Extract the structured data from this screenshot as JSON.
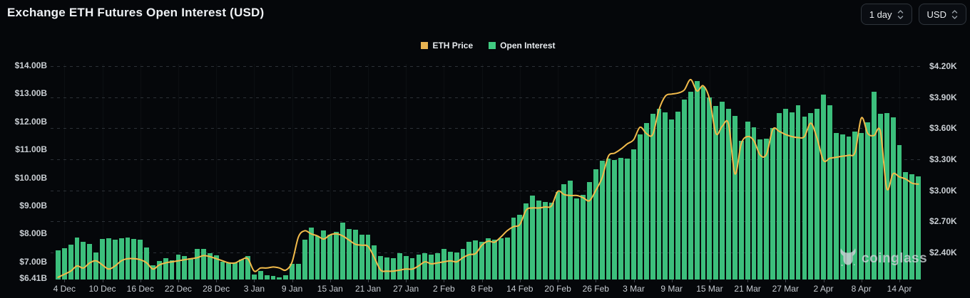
{
  "header": {
    "title": "Exchange ETH Futures Open Interest (USD)"
  },
  "controls": {
    "interval_select": {
      "value": "1 day"
    },
    "currency_select": {
      "value": "USD"
    }
  },
  "icons": {
    "select_chevron": "up-down-chevrons",
    "watermark_logo": "coinglass-bull"
  },
  "legend": {
    "items": [
      {
        "label": "ETH Price",
        "color": "#e9b452"
      },
      {
        "label": "Open Interest",
        "color": "#41cb82"
      }
    ]
  },
  "watermark": {
    "label": "coinglass"
  },
  "chart_data": {
    "type": "combo",
    "title": "Exchange ETH Futures Open Interest (USD)",
    "grid": "horizontal-dashed",
    "legend_position": "top-center",
    "left_axis": {
      "unit": "USD billions",
      "min": 6.41,
      "max": 14.0,
      "ticks": [
        {
          "value": 14.0,
          "label": "$14.00B"
        },
        {
          "value": 13.0,
          "label": "$13.00B"
        },
        {
          "value": 12.0,
          "label": "$12.00B"
        },
        {
          "value": 11.0,
          "label": "$11.00B"
        },
        {
          "value": 10.0,
          "label": "$10.00B"
        },
        {
          "value": 9.0,
          "label": "$9.00B"
        },
        {
          "value": 8.0,
          "label": "$8.00B"
        },
        {
          "value": 7.0,
          "label": "$7.00B"
        },
        {
          "value": 6.41,
          "label": "$6.41B"
        }
      ]
    },
    "right_axis": {
      "unit": "USD thousands",
      "min": 2.1,
      "max": 4.2,
      "ticks": [
        {
          "value": 4.2,
          "label": "$4.20K"
        },
        {
          "value": 3.9,
          "label": "$3.90K"
        },
        {
          "value": 3.6,
          "label": "$3.60K"
        },
        {
          "value": 3.3,
          "label": "$3.30K"
        },
        {
          "value": 3.0,
          "label": "$3.00K"
        },
        {
          "value": 2.7,
          "label": "$2.70K"
        },
        {
          "value": 2.4,
          "label": "$2.40K"
        }
      ]
    },
    "x_tick_labels": [
      "4 Dec",
      "10 Dec",
      "16 Dec",
      "22 Dec",
      "28 Dec",
      "3 Jan",
      "9 Jan",
      "15 Jan",
      "21 Jan",
      "27 Jan",
      "2 Feb",
      "8 Feb",
      "14 Feb",
      "20 Feb",
      "26 Feb",
      "3 Mar",
      "9 Mar",
      "15 Mar",
      "21 Mar",
      "27 Mar",
      "2 Apr",
      "8 Apr",
      "14 Apr"
    ],
    "categories": [
      "3 Dec",
      "4 Dec",
      "5 Dec",
      "6 Dec",
      "7 Dec",
      "8 Dec",
      "9 Dec",
      "10 Dec",
      "11 Dec",
      "12 Dec",
      "13 Dec",
      "14 Dec",
      "15 Dec",
      "16 Dec",
      "17 Dec",
      "18 Dec",
      "19 Dec",
      "20 Dec",
      "21 Dec",
      "22 Dec",
      "23 Dec",
      "24 Dec",
      "25 Dec",
      "26 Dec",
      "27 Dec",
      "28 Dec",
      "29 Dec",
      "30 Dec",
      "31 Dec",
      "1 Jan",
      "2 Jan",
      "3 Jan",
      "4 Jan",
      "5 Jan",
      "6 Jan",
      "7 Jan",
      "8 Jan",
      "9 Jan",
      "10 Jan",
      "11 Jan",
      "12 Jan",
      "13 Jan",
      "14 Jan",
      "15 Jan",
      "16 Jan",
      "17 Jan",
      "18 Jan",
      "19 Jan",
      "20 Jan",
      "21 Jan",
      "22 Jan",
      "23 Jan",
      "24 Jan",
      "25 Jan",
      "26 Jan",
      "27 Jan",
      "28 Jan",
      "29 Jan",
      "30 Jan",
      "31 Jan",
      "1 Feb",
      "2 Feb",
      "3 Feb",
      "4 Feb",
      "5 Feb",
      "6 Feb",
      "7 Feb",
      "8 Feb",
      "9 Feb",
      "10 Feb",
      "11 Feb",
      "12 Feb",
      "13 Feb",
      "14 Feb",
      "15 Feb",
      "16 Feb",
      "17 Feb",
      "18 Feb",
      "19 Feb",
      "20 Feb",
      "21 Feb",
      "22 Feb",
      "23 Feb",
      "24 Feb",
      "25 Feb",
      "26 Feb",
      "27 Feb",
      "28 Feb",
      "29 Feb",
      "1 Mar",
      "2 Mar",
      "3 Mar",
      "4 Mar",
      "5 Mar",
      "6 Mar",
      "7 Mar",
      "8 Mar",
      "9 Mar",
      "10 Mar",
      "11 Mar",
      "12 Mar",
      "13 Mar",
      "14 Mar",
      "15 Mar",
      "16 Mar",
      "17 Mar",
      "18 Mar",
      "19 Mar",
      "20 Mar",
      "21 Mar",
      "22 Mar",
      "23 Mar",
      "24 Mar",
      "25 Mar",
      "26 Mar",
      "27 Mar",
      "28 Mar",
      "29 Mar",
      "30 Mar",
      "31 Mar",
      "1 Apr",
      "2 Apr",
      "3 Apr",
      "4 Apr",
      "5 Apr",
      "6 Apr",
      "7 Apr",
      "8 Apr",
      "9 Apr",
      "10 Apr",
      "11 Apr",
      "12 Apr",
      "13 Apr",
      "14 Apr",
      "15 Apr",
      "16 Apr",
      "17 Apr"
    ],
    "series": [
      {
        "name": "Open Interest",
        "type": "bar",
        "axis": "left",
        "unit": "USD billions",
        "color": "#3cbf7c",
        "values": [
          7.45,
          7.52,
          7.65,
          7.92,
          7.75,
          7.68,
          7.38,
          7.85,
          7.88,
          7.82,
          7.88,
          7.9,
          7.87,
          7.82,
          7.55,
          6.93,
          7.08,
          7.18,
          7.1,
          7.31,
          7.24,
          7.18,
          7.49,
          7.51,
          7.36,
          7.27,
          7.05,
          7.0,
          7.01,
          7.12,
          7.26,
          6.58,
          6.71,
          6.56,
          6.53,
          6.5,
          6.56,
          6.96,
          6.97,
          7.82,
          8.26,
          7.96,
          8.16,
          8.02,
          8.11,
          8.45,
          8.22,
          8.2,
          8.02,
          8.0,
          7.62,
          7.26,
          7.2,
          7.16,
          7.36,
          7.26,
          7.16,
          7.31,
          7.36,
          7.3,
          7.36,
          7.51,
          7.41,
          7.38,
          7.49,
          7.76,
          7.81,
          7.76,
          7.88,
          7.84,
          7.89,
          7.92,
          8.63,
          8.73,
          9.12,
          9.41,
          9.24,
          9.19,
          9.14,
          9.53,
          9.82,
          9.95,
          9.3,
          9.42,
          9.9,
          10.35,
          10.65,
          10.72,
          10.68,
          10.75,
          10.72,
          11.05,
          11.6,
          12.0,
          12.33,
          12.5,
          12.38,
          12.12,
          12.4,
          12.84,
          13.1,
          13.5,
          13.3,
          12.9,
          12.6,
          12.75,
          12.5,
          12.25,
          11.35,
          12.05,
          11.85,
          11.42,
          11.43,
          11.82,
          12.35,
          12.5,
          12.38,
          12.62,
          12.22,
          12.35,
          12.5,
          13.02,
          12.62,
          11.65,
          11.6,
          11.52,
          11.7,
          11.65,
          12.02,
          13.12,
          12.32,
          12.36,
          12.2,
          11.22,
          10.25,
          10.17,
          10.08
        ]
      },
      {
        "name": "ETH Price",
        "type": "line",
        "axis": "right",
        "unit": "USD thousands",
        "color": "#f2bb4b",
        "values": [
          2.16,
          2.19,
          2.22,
          2.27,
          2.25,
          2.3,
          2.32,
          2.28,
          2.24,
          2.27,
          2.32,
          2.34,
          2.34,
          2.33,
          2.3,
          2.24,
          2.28,
          2.3,
          2.31,
          2.32,
          2.33,
          2.34,
          2.35,
          2.37,
          2.36,
          2.34,
          2.32,
          2.3,
          2.3,
          2.33,
          2.34,
          2.22,
          2.25,
          2.25,
          2.26,
          2.25,
          2.23,
          2.31,
          2.55,
          2.61,
          2.58,
          2.56,
          2.53,
          2.57,
          2.58,
          2.56,
          2.52,
          2.48,
          2.47,
          2.46,
          2.35,
          2.23,
          2.22,
          2.22,
          2.23,
          2.24,
          2.24,
          2.27,
          2.31,
          2.29,
          2.3,
          2.31,
          2.32,
          2.31,
          2.35,
          2.38,
          2.39,
          2.47,
          2.51,
          2.5,
          2.55,
          2.61,
          2.65,
          2.67,
          2.81,
          2.83,
          2.83,
          2.84,
          2.85,
          2.99,
          2.96,
          2.95,
          2.95,
          2.93,
          2.9,
          3.0,
          3.12,
          3.33,
          3.36,
          3.4,
          3.45,
          3.49,
          3.61,
          3.55,
          3.54,
          3.78,
          3.91,
          3.93,
          3.94,
          3.97,
          4.07,
          3.96,
          4.01,
          3.88,
          3.55,
          3.62,
          3.64,
          3.16,
          3.45,
          3.52,
          3.48,
          3.34,
          3.35,
          3.59,
          3.57,
          3.54,
          3.52,
          3.51,
          3.52,
          3.65,
          3.5,
          3.29,
          3.31,
          3.32,
          3.33,
          3.34,
          3.37,
          3.7,
          3.55,
          3.53,
          3.57,
          3.02,
          3.16,
          3.13,
          3.11,
          3.07,
          3.06
        ]
      }
    ]
  }
}
